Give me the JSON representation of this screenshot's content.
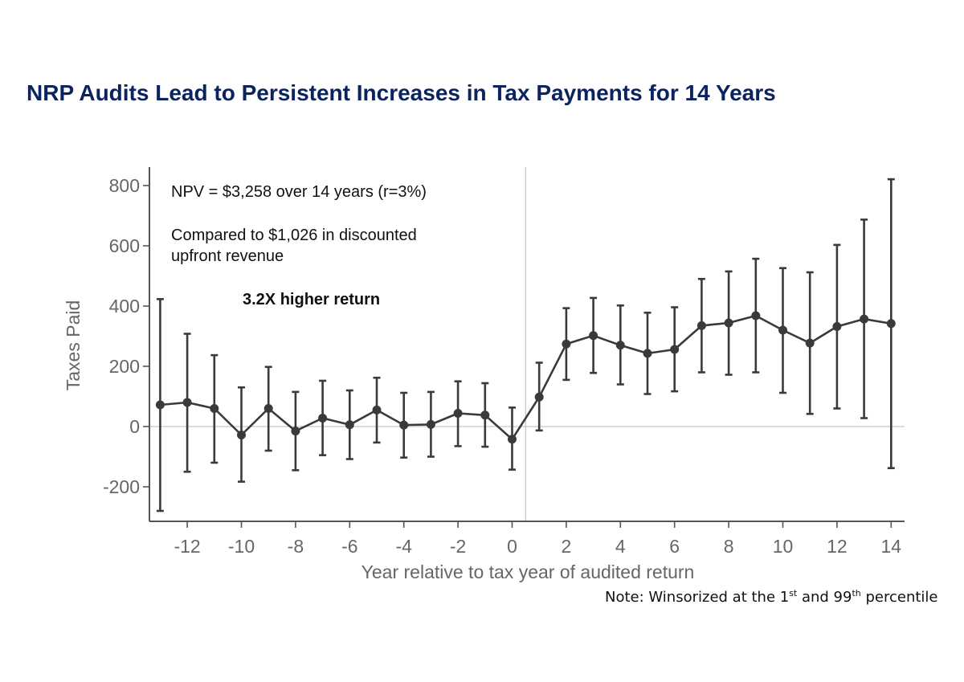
{
  "title": "NRP Audits Lead to Persistent Increases in Tax Payments for 14 Years",
  "note": {
    "prefix": "Note: Winsorized at the 1",
    "sup1": "st",
    "middle": " and 99",
    "sup2": "th",
    "suffix": " percentile"
  },
  "annotations": {
    "npv": "NPV = $3,258 over 14 years (r=3%)",
    "compared_line1": "Compared to $1,026 in discounted",
    "compared_line2": "upfront revenue",
    "ratio": "3.2X higher return"
  },
  "chart_data": {
    "type": "line",
    "title": "NRP Audits Lead to Persistent Increases in Tax Payments for 14 Years",
    "xlabel": "Year relative to tax year of audited return",
    "ylabel": "Taxes Paid",
    "xlim": [
      -13.5,
      14.5
    ],
    "ylim": [
      -320,
      860
    ],
    "xticks": [
      -12,
      -10,
      -8,
      -6,
      -4,
      -2,
      0,
      2,
      4,
      6,
      8,
      10,
      12,
      14
    ],
    "yticks": [
      -200,
      0,
      200,
      400,
      600,
      800
    ],
    "reference_lines": {
      "vertical_x": 0.5,
      "horizontal_y": 0
    },
    "grid": false,
    "series": [
      {
        "color": "#3a3a3a",
        "x": [
          -13,
          -12,
          -11,
          -10,
          -9,
          -8,
          -7,
          -6,
          -5,
          -4,
          -3,
          -2,
          -1,
          0,
          1,
          2,
          3,
          4,
          5,
          6,
          7,
          8,
          9,
          10,
          11,
          12,
          13,
          14
        ],
        "y": [
          72,
          80,
          60,
          -28,
          60,
          -15,
          28,
          6,
          55,
          5,
          7,
          44,
          38,
          -42,
          98,
          274,
          302,
          270,
          243,
          256,
          335,
          344,
          368,
          320,
          277,
          332,
          357,
          342
        ],
        "ci_low": [
          -280,
          -150,
          -120,
          -183,
          -80,
          -145,
          -95,
          -108,
          -53,
          -103,
          -100,
          -65,
          -67,
          -143,
          -13,
          155,
          178,
          140,
          108,
          117,
          180,
          172,
          180,
          112,
          42,
          60,
          28,
          -138
        ],
        "ci_high": [
          423,
          308,
          237,
          130,
          198,
          115,
          152,
          120,
          162,
          112,
          115,
          150,
          144,
          63,
          212,
          393,
          427,
          402,
          378,
          396,
          490,
          515,
          557,
          526,
          512,
          603,
          687,
          821
        ]
      }
    ]
  }
}
